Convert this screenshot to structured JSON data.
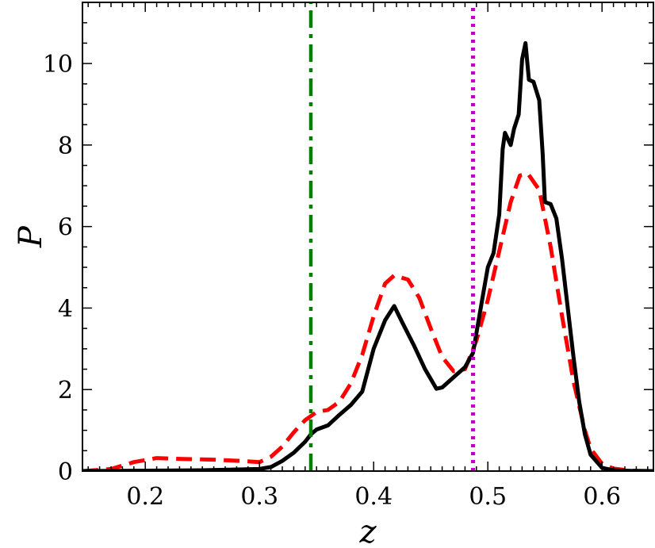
{
  "chart_data": {
    "type": "line",
    "xlabel": "z",
    "ylabel": "P",
    "xlim": [
      0.145,
      0.645
    ],
    "ylim": [
      0,
      11.5
    ],
    "x_ticks": [
      0.2,
      0.3,
      0.4,
      0.5,
      0.6
    ],
    "x_tick_labels": [
      "0.2",
      "0.3",
      "0.4",
      "0.5",
      "0.6"
    ],
    "y_ticks": [
      0,
      2,
      4,
      6,
      8,
      10
    ],
    "y_tick_labels": [
      "0",
      "2",
      "4",
      "6",
      "8",
      "10"
    ],
    "grid": false,
    "colors": {
      "black": "#000000",
      "red": "#ff0000",
      "green": "#008000",
      "magenta": "#bf00bf"
    },
    "series": [
      {
        "style": "solid",
        "color": "#000000",
        "x": [
          0.145,
          0.2,
          0.25,
          0.3,
          0.31,
          0.32,
          0.33,
          0.34,
          0.345,
          0.35,
          0.36,
          0.37,
          0.38,
          0.39,
          0.4,
          0.41,
          0.418,
          0.425,
          0.435,
          0.445,
          0.455,
          0.46,
          0.47,
          0.48,
          0.487,
          0.495,
          0.5,
          0.505,
          0.51,
          0.513,
          0.515,
          0.52,
          0.523,
          0.527,
          0.53,
          0.533,
          0.536,
          0.54,
          0.545,
          0.548,
          0.55,
          0.555,
          0.56,
          0.565,
          0.57,
          0.575,
          0.58,
          0.585,
          0.59,
          0.6,
          0.61,
          0.62,
          0.63,
          0.645
        ],
        "y": [
          0,
          0.01,
          0.02,
          0.05,
          0.1,
          0.25,
          0.45,
          0.72,
          0.9,
          1.02,
          1.12,
          1.38,
          1.62,
          1.95,
          3.0,
          3.7,
          4.05,
          3.65,
          3.1,
          2.5,
          2.02,
          2.05,
          2.3,
          2.55,
          2.9,
          4.2,
          5.0,
          5.35,
          6.3,
          7.9,
          8.3,
          8.0,
          8.4,
          8.75,
          10.1,
          10.5,
          9.6,
          9.55,
          9.1,
          7.8,
          6.6,
          6.55,
          6.2,
          5.2,
          4.0,
          2.8,
          1.7,
          0.9,
          0.4,
          0.08,
          0.02,
          0.01,
          0,
          0
        ]
      },
      {
        "style": "dashed",
        "color": "#ff0000",
        "x": [
          0.145,
          0.17,
          0.19,
          0.21,
          0.23,
          0.26,
          0.29,
          0.3,
          0.31,
          0.32,
          0.33,
          0.34,
          0.35,
          0.36,
          0.37,
          0.38,
          0.39,
          0.4,
          0.41,
          0.418,
          0.43,
          0.44,
          0.45,
          0.46,
          0.47,
          0.48,
          0.49,
          0.5,
          0.51,
          0.52,
          0.528,
          0.535,
          0.545,
          0.555,
          0.565,
          0.575,
          0.585,
          0.59,
          0.6,
          0.61,
          0.625,
          0.645
        ],
        "y": [
          0,
          0.05,
          0.22,
          0.32,
          0.3,
          0.28,
          0.24,
          0.22,
          0.35,
          0.6,
          0.95,
          1.25,
          1.45,
          1.5,
          1.7,
          2.15,
          2.85,
          3.8,
          4.6,
          4.8,
          4.7,
          4.25,
          3.5,
          2.8,
          2.45,
          2.5,
          3.2,
          4.2,
          5.4,
          6.6,
          7.25,
          7.3,
          6.9,
          5.5,
          3.8,
          2.2,
          1.0,
          0.55,
          0.18,
          0.06,
          0.01,
          0
        ]
      },
      {
        "style": "dashdot",
        "color": "#008000",
        "x": [
          0.345,
          0.345
        ],
        "y": [
          0,
          11.5
        ]
      },
      {
        "style": "dotted",
        "color": "#bf00bf",
        "x": [
          0.487,
          0.487
        ],
        "y": [
          0,
          11.5
        ]
      }
    ]
  }
}
